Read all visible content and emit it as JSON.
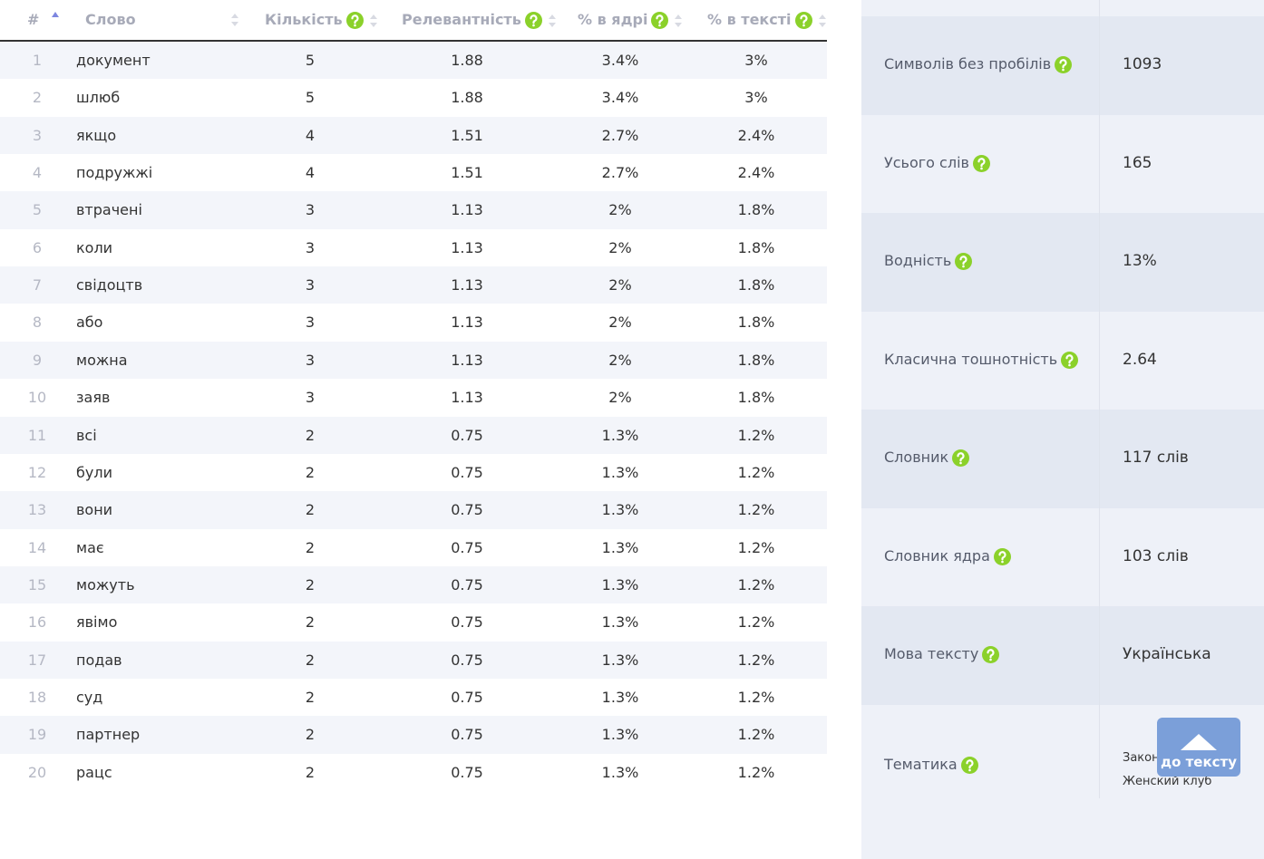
{
  "table": {
    "headers": [
      "#",
      "Слово",
      "Кількість",
      "Релевантність",
      "% в ядрі",
      "% в тексті"
    ],
    "rows": [
      [
        "1",
        "документ",
        "5",
        "1.88",
        "3.4%",
        "3%"
      ],
      [
        "2",
        "шлюб",
        "5",
        "1.88",
        "3.4%",
        "3%"
      ],
      [
        "3",
        "якщо",
        "4",
        "1.51",
        "2.7%",
        "2.4%"
      ],
      [
        "4",
        "подружжі",
        "4",
        "1.51",
        "2.7%",
        "2.4%"
      ],
      [
        "5",
        "втрачені",
        "3",
        "1.13",
        "2%",
        "1.8%"
      ],
      [
        "6",
        "коли",
        "3",
        "1.13",
        "2%",
        "1.8%"
      ],
      [
        "7",
        "свідоцтв",
        "3",
        "1.13",
        "2%",
        "1.8%"
      ],
      [
        "8",
        "або",
        "3",
        "1.13",
        "2%",
        "1.8%"
      ],
      [
        "9",
        "можна",
        "3",
        "1.13",
        "2%",
        "1.8%"
      ],
      [
        "10",
        "заяв",
        "3",
        "1.13",
        "2%",
        "1.8%"
      ],
      [
        "11",
        "всі",
        "2",
        "0.75",
        "1.3%",
        "1.2%"
      ],
      [
        "12",
        "були",
        "2",
        "0.75",
        "1.3%",
        "1.2%"
      ],
      [
        "13",
        "вони",
        "2",
        "0.75",
        "1.3%",
        "1.2%"
      ],
      [
        "14",
        "має",
        "2",
        "0.75",
        "1.3%",
        "1.2%"
      ],
      [
        "15",
        "можуть",
        "2",
        "0.75",
        "1.3%",
        "1.2%"
      ],
      [
        "16",
        "явімо",
        "2",
        "0.75",
        "1.3%",
        "1.2%"
      ],
      [
        "17",
        "подав",
        "2",
        "0.75",
        "1.3%",
        "1.2%"
      ],
      [
        "18",
        "суд",
        "2",
        "0.75",
        "1.3%",
        "1.2%"
      ],
      [
        "19",
        "партнер",
        "2",
        "0.75",
        "1.3%",
        "1.2%"
      ],
      [
        "20",
        "рацс",
        "2",
        "0.75",
        "1.3%",
        "1.2%"
      ]
    ]
  },
  "stats": [
    {
      "label": "Символів без пробілів",
      "value": "1093"
    },
    {
      "label": "Усього слів",
      "value": "165"
    },
    {
      "label": "Водність",
      "value": "13%"
    },
    {
      "label": "Класична тошнотність",
      "value": "2.64"
    },
    {
      "label": "Словник",
      "value": "117 слів"
    },
    {
      "label": "Словник ядра",
      "value": "103 слів"
    },
    {
      "label": "Мова тексту",
      "value": "Українська"
    },
    {
      "label": "Тематика",
      "value": "Законодавство, Женский клуб"
    }
  ],
  "button": "до тексту"
}
